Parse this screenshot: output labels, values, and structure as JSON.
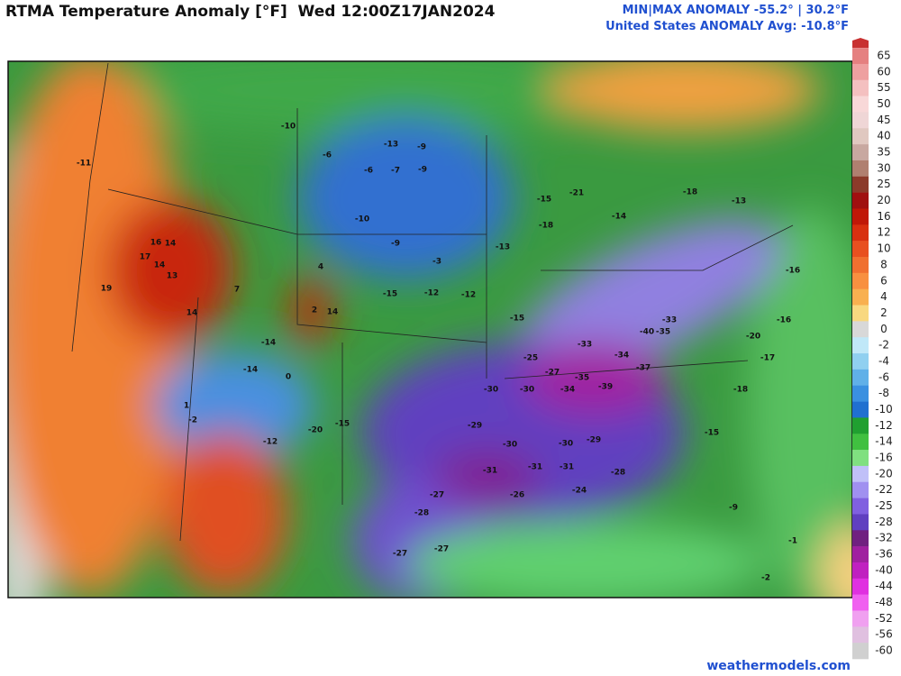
{
  "header": {
    "title": "RTMA Temperature Anomaly [°F]  Wed 12:00Z17JAN2024",
    "stats": [
      "MIN|MAX ANOMALY -55.2° | 30.2°F",
      "United States ANOMALY Avg: -10.8°F"
    ]
  },
  "footer": "weathermodels.com",
  "colorbar": {
    "levels": [
      65,
      60,
      55,
      50,
      45,
      40,
      35,
      30,
      25,
      20,
      16,
      12,
      10,
      8,
      6,
      4,
      2,
      0,
      -2,
      -4,
      -6,
      -8,
      -10,
      -12,
      -14,
      -16,
      -20,
      -22,
      -25,
      -28,
      -32,
      -36,
      -40,
      -44,
      -48,
      -52,
      -56,
      -60
    ],
    "colors": [
      "#e58080",
      "#eea0a0",
      "#f4c0c0",
      "#f8d8d8",
      "#efd6d6",
      "#e0c8c0",
      "#c8a8a0",
      "#b08070",
      "#8b3a2a",
      "#a01010",
      "#c01808",
      "#d83010",
      "#e85020",
      "#f07030",
      "#f89040",
      "#f8b050",
      "#f8d880",
      "#d8d8d8",
      "#c0e8f8",
      "#90d0f0",
      "#60b0e8",
      "#3a90e0",
      "#2070d0",
      "#20a030",
      "#40c040",
      "#80e080",
      "#c0c0f8",
      "#a090f0",
      "#8060e0",
      "#6040c0",
      "#702080",
      "#a020a0",
      "#c020c0",
      "#e030e0",
      "#f060f0",
      "#f0a0f0",
      "#e0c0e0",
      "#d0d0d0"
    ]
  },
  "map_labels": [
    -11,
    16,
    14,
    17,
    14,
    13,
    19,
    14,
    -10,
    -6,
    -13,
    -9,
    -6,
    -7,
    -9,
    -10,
    -9,
    -3,
    -15,
    -12,
    -12,
    -15,
    -27,
    -25,
    -33,
    -34,
    -37,
    -35,
    -40,
    -33,
    -35,
    -39,
    -34,
    -30,
    -30,
    -29,
    -30,
    -30,
    -29,
    -31,
    -31,
    -31,
    -28,
    -28,
    -27,
    -27,
    -27,
    -26,
    -24,
    -15,
    -18,
    -17,
    -20,
    -16,
    -16,
    -13,
    -18,
    -14,
    -18,
    -13,
    -15,
    -21,
    -20,
    -15,
    -12,
    -2,
    1,
    0,
    14,
    2,
    4,
    7,
    -14,
    -14,
    -2,
    -9,
    -1
  ]
}
